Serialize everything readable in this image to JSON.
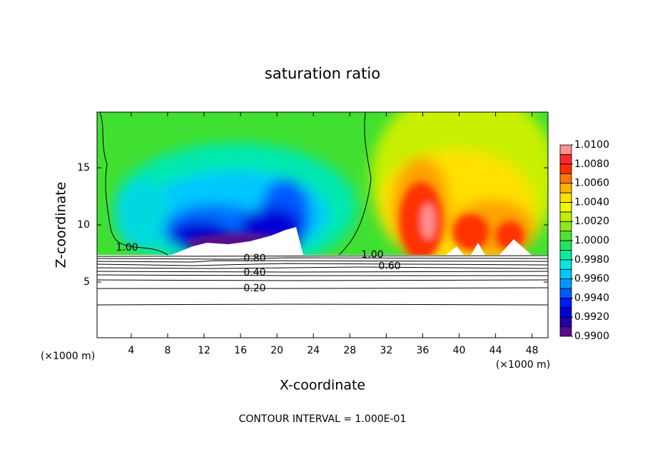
{
  "chart_data": {
    "type": "contour",
    "title": "saturation ratio",
    "x_label": "X-coordinate",
    "y_label": "Z-coordinate",
    "x_unit_left": "(×1000 m)",
    "x_unit_right": "(×1000 m)",
    "xlim": [
      0.25,
      49.75
    ],
    "xticks": [
      4,
      8,
      12,
      16,
      20,
      24,
      28,
      32,
      36,
      40,
      44,
      48
    ],
    "ylim": [
      0.125,
      19.875
    ],
    "yticks": [
      5,
      10,
      15
    ],
    "colorbar_lim": [
      0.99,
      1.01
    ],
    "colorbar_ticks": [
      {
        "value": 0.99,
        "label": "0.9900"
      },
      {
        "value": 0.992,
        "label": "0.9920"
      },
      {
        "value": 0.994,
        "label": "0.9940"
      },
      {
        "value": 0.996,
        "label": "0.9960"
      },
      {
        "value": 0.998,
        "label": "0.9980"
      },
      {
        "value": 1.0,
        "label": "1.0000"
      },
      {
        "value": 1.002,
        "label": "1.0020"
      },
      {
        "value": 1.004,
        "label": "1.0040"
      },
      {
        "value": 1.006,
        "label": "1.0060"
      },
      {
        "value": 1.008,
        "label": "1.0080"
      },
      {
        "value": 1.01,
        "label": "1.0100"
      }
    ],
    "colorbar_colors": [
      "#5a0a8c",
      "#2000a8",
      "#0000d8",
      "#0018ff",
      "#0058ff",
      "#0098ff",
      "#00c8ff",
      "#00e8e0",
      "#00f0a0",
      "#20e860",
      "#50e030",
      "#90e818",
      "#c0f000",
      "#f0f800",
      "#ffe000",
      "#ffb000",
      "#ff7800",
      "#ff3000",
      "#ff2828",
      "#ff9090"
    ],
    "contour_labels": [
      "1.00",
      "0.80",
      "0.40",
      "0.20",
      "1.00",
      "0.60"
    ],
    "footer": "CONTOUR INTERVAL = 1.000E-01"
  }
}
